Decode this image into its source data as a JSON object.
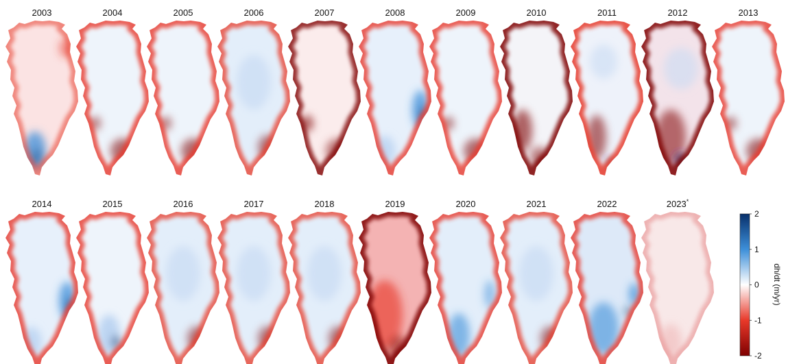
{
  "figure": {
    "panels": [
      {
        "year": "2003",
        "signature": "south_blue_low"
      },
      {
        "year": "2004",
        "signature": "red_margins"
      },
      {
        "year": "2005",
        "signature": "red_margins"
      },
      {
        "year": "2006",
        "signature": "light_blue_interior"
      },
      {
        "year": "2007",
        "signature": "strong_red_margins"
      },
      {
        "year": "2008",
        "signature": "blue_east"
      },
      {
        "year": "2009",
        "signature": "red_margins"
      },
      {
        "year": "2010",
        "signature": "strong_red_west"
      },
      {
        "year": "2011",
        "signature": "red_south_west"
      },
      {
        "year": "2012",
        "signature": "strong_red_south"
      },
      {
        "year": "2013",
        "signature": "red_margins"
      },
      {
        "year": "2014",
        "signature": "blue_east"
      },
      {
        "year": "2015",
        "signature": "light_blue_south"
      },
      {
        "year": "2016",
        "signature": "light_blue_interior"
      },
      {
        "year": "2017",
        "signature": "light_blue_interior"
      },
      {
        "year": "2018",
        "signature": "light_blue_interior"
      },
      {
        "year": "2019",
        "signature": "red_everywhere"
      },
      {
        "year": "2020",
        "signature": "blue_south"
      },
      {
        "year": "2021",
        "signature": "light_blue_interior"
      },
      {
        "year": "2022",
        "signature": "blue_south_east"
      },
      {
        "year": "2023",
        "signature": "faint_red",
        "marker": "*"
      }
    ],
    "colorbar": {
      "label": "dh/dt (m/yr)",
      "ticks": [
        "2",
        "1",
        "0",
        "-1",
        "-2"
      ],
      "min": -2,
      "max": 2,
      "colors": {
        "dark_blue": "#08306b",
        "mid_blue": "#3d8fd9",
        "white": "#ffffff",
        "mid_red": "#e8392a",
        "dark_red": "#7f0000"
      }
    }
  }
}
